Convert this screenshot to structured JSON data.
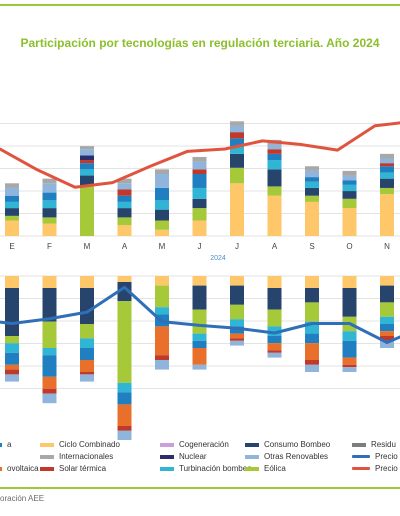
{
  "title": "Participación por tecnologías en regulación terciaria. Año 2024",
  "source": "oración AEE",
  "colors": {
    "accent": "#9cc83a",
    "ciclo_combinado": "#fdc76a",
    "consumo_bombeo": "#27456c",
    "eolica": "#a6c93a",
    "turbinacion_bombeo": "#30b5d4",
    "internacionales": "#a8a8a8",
    "solar_termica": "#c0392b",
    "otras_renovables": "#8fb5dd",
    "cogeneracion": "#c9a0dc",
    "nuclear": "#2c2d6b",
    "hidraulica": "#1f7fc0",
    "carbon": "#e8702a",
    "residuos": "#7d7d7d",
    "precio_blue": "#2e6fb7",
    "precio_red": "#e0543f"
  },
  "legend": [
    {
      "label": "a",
      "color_key": "hidraulica",
      "kind": "bar"
    },
    {
      "label": "ovoltaica",
      "color_key": "carbon",
      "kind": "bar"
    },
    {
      "label": "Ciclo Combinado",
      "color_key": "ciclo_combinado",
      "kind": "bar"
    },
    {
      "label": "Internacionales",
      "color_key": "internacionales",
      "kind": "bar"
    },
    {
      "label": "Solar térmica",
      "color_key": "solar_termica",
      "kind": "bar"
    },
    {
      "label": "Cogeneración",
      "color_key": "cogeneracion",
      "kind": "bar"
    },
    {
      "label": "Nuclear",
      "color_key": "nuclear",
      "kind": "bar"
    },
    {
      "label": "Turbinación bombeo",
      "color_key": "turbinacion_bombeo",
      "kind": "bar"
    },
    {
      "label": "Consumo Bombeo",
      "color_key": "consumo_bombeo",
      "kind": "bar"
    },
    {
      "label": "Otras Renovables",
      "color_key": "otras_renovables",
      "kind": "bar"
    },
    {
      "label": "Eólica",
      "color_key": "eolica",
      "kind": "bar"
    },
    {
      "label": "Residu",
      "color_key": "residuos",
      "kind": "bar"
    },
    {
      "label": "Precio",
      "color_key": "precio_blue",
      "kind": "line"
    },
    {
      "label": "Precio",
      "color_key": "precio_red",
      "kind": "line"
    }
  ],
  "chart_data": {
    "type": "bar",
    "year_label": "2024",
    "categories": [
      "E",
      "F",
      "M",
      "A",
      "M",
      "J",
      "J",
      "A",
      "S",
      "O",
      "N"
    ],
    "upward": {
      "description": "stacked bars",
      "series": [
        {
          "key": "ciclo_combinado",
          "values": [
            10,
            8,
            0,
            7,
            4,
            10,
            34,
            26,
            22,
            18,
            27
          ]
        },
        {
          "key": "carbon",
          "values": [
            0,
            0,
            0,
            0,
            0,
            0,
            0,
            0,
            0,
            0,
            0
          ]
        },
        {
          "key": "eolica",
          "values": [
            3,
            4,
            32,
            5,
            6,
            8,
            10,
            6,
            4,
            6,
            4
          ]
        },
        {
          "key": "consumo_bombeo",
          "values": [
            5,
            6,
            7,
            6,
            7,
            6,
            9,
            11,
            5,
            5,
            6
          ]
        },
        {
          "key": "turbinacion_bombeo",
          "values": [
            4,
            5,
            4,
            4,
            6,
            7,
            5,
            6,
            4,
            4,
            4
          ]
        },
        {
          "key": "hidraulica",
          "values": [
            4,
            5,
            4,
            4,
            8,
            9,
            5,
            4,
            3,
            3,
            4
          ]
        },
        {
          "key": "solar_termica",
          "values": [
            0,
            0,
            2,
            4,
            0,
            3,
            4,
            3,
            0,
            0,
            2
          ]
        },
        {
          "key": "nuclear",
          "values": [
            0,
            0,
            3,
            0,
            0,
            0,
            0,
            0,
            0,
            0,
            0
          ]
        },
        {
          "key": "otras_renovables",
          "values": [
            5,
            6,
            4,
            4,
            9,
            5,
            4,
            3,
            4,
            3,
            3
          ]
        },
        {
          "key": "internacionales",
          "values": [
            3,
            3,
            2,
            3,
            3,
            3,
            3,
            3,
            3,
            3,
            3
          ]
        }
      ],
      "price_red": [
        74,
        0,
        0,
        0,
        0,
        73,
        75,
        82,
        79,
        74,
        95
      ],
      "price_red_full": [
        75,
        57,
        42,
        46,
        60,
        73,
        75,
        82,
        79,
        74,
        95
      ]
    },
    "downward": {
      "description": "stacked bars (values in arbitrary units, downward)",
      "series": [
        {
          "key": "ciclo_combinado",
          "values": [
            10,
            10,
            10,
            5,
            8,
            8,
            8,
            10,
            10,
            10,
            8
          ]
        },
        {
          "key": "consumo_bombeo",
          "values": [
            40,
            28,
            30,
            16,
            0,
            20,
            16,
            18,
            12,
            24,
            14
          ]
        },
        {
          "key": "eolica",
          "values": [
            6,
            22,
            12,
            68,
            18,
            20,
            12,
            14,
            16,
            12,
            12
          ]
        },
        {
          "key": "turbinacion_bombeo",
          "values": [
            8,
            6,
            8,
            8,
            6,
            6,
            6,
            8,
            10,
            8,
            6
          ]
        },
        {
          "key": "hidraulica",
          "values": [
            10,
            18,
            10,
            10,
            10,
            6,
            6,
            6,
            8,
            14,
            6
          ]
        },
        {
          "key": "carbon",
          "values": [
            4,
            10,
            10,
            18,
            24,
            14,
            4,
            6,
            14,
            6,
            4
          ]
        },
        {
          "key": "solar_termica",
          "values": [
            4,
            4,
            2,
            4,
            4,
            0,
            2,
            2,
            4,
            2,
            4
          ]
        },
        {
          "key": "otras_renovables",
          "values": [
            6,
            8,
            6,
            10,
            8,
            4,
            4,
            4,
            6,
            4,
            6
          ]
        }
      ],
      "price_blue": [
        -50,
        -45,
        -38,
        -12,
        -48,
        -52,
        -55,
        -60,
        -50,
        -50,
        -70
      ]
    }
  }
}
